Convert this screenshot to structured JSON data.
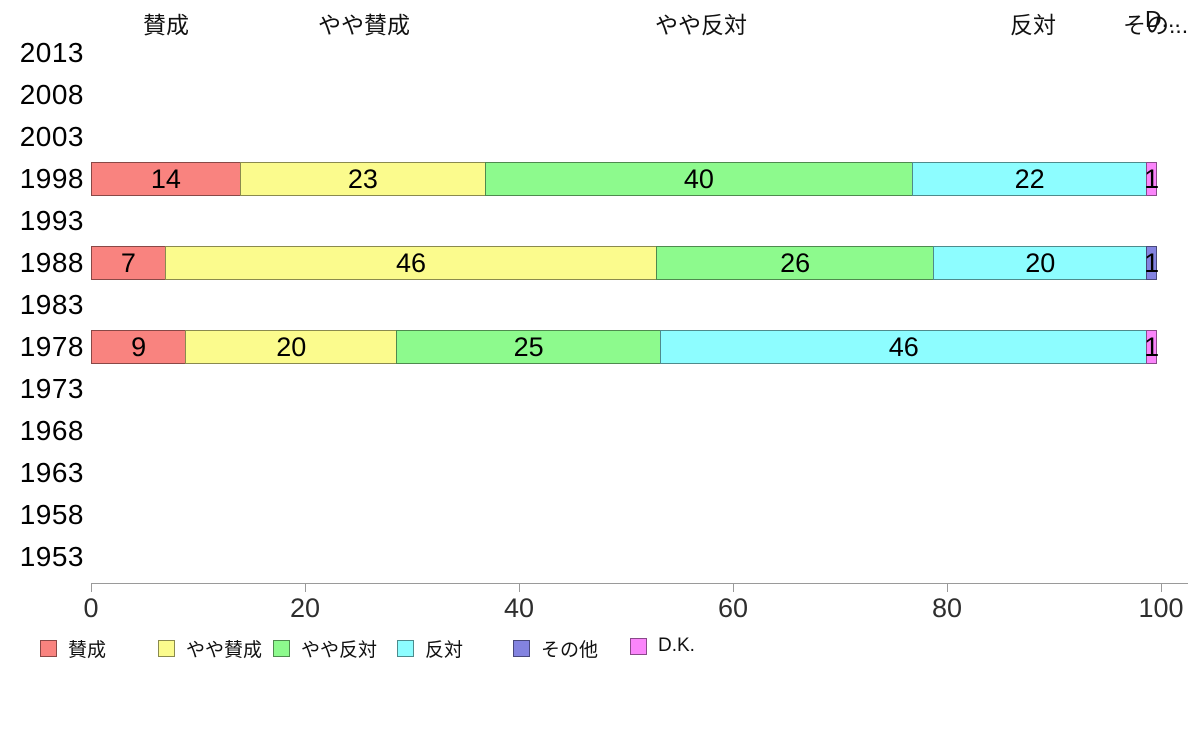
{
  "top_labels": [
    "賛成",
    "やや賛成",
    "やや反対",
    "反対",
    "その...",
    "D..."
  ],
  "legend": {
    "items": [
      {
        "key": "sansei",
        "label": "賛成",
        "color": "#F9837F"
      },
      {
        "key": "yaya-sansei",
        "label": "やや賛成",
        "color": "#FBFB8D"
      },
      {
        "key": "yaya-hantai",
        "label": "やや反対",
        "color": "#8DFA8D"
      },
      {
        "key": "hantai",
        "label": "反対",
        "color": "#8DFDFF"
      },
      {
        "key": "sonota",
        "label": "その他",
        "color": "#8383E0"
      },
      {
        "key": "dk",
        "label": "D.K.",
        "color": "#FA85FA"
      }
    ]
  },
  "chart_data": {
    "type": "bar",
    "orientation": "horizontal",
    "stacked": true,
    "grid": false,
    "legend_position": "bottom",
    "xlim": [
      0,
      100
    ],
    "x_ticks": [
      "0",
      "20",
      "40",
      "60",
      "80",
      "100"
    ],
    "categories": [
      "2013",
      "2008",
      "2003",
      "1998",
      "1993",
      "1988",
      "1983",
      "1978",
      "1973",
      "1968",
      "1963",
      "1958",
      "1953"
    ],
    "series": [
      {
        "key": "sansei",
        "name": "賛成",
        "color": "#F9837F",
        "values": [
          null,
          null,
          null,
          14,
          null,
          7,
          null,
          9,
          null,
          null,
          null,
          null,
          null
        ]
      },
      {
        "key": "yaya-sansei",
        "name": "やや賛成",
        "color": "#FBFB8D",
        "values": [
          null,
          null,
          null,
          23,
          null,
          46,
          null,
          20,
          null,
          null,
          null,
          null,
          null
        ]
      },
      {
        "key": "yaya-hantai",
        "name": "やや反対",
        "color": "#8DFA8D",
        "values": [
          null,
          null,
          null,
          40,
          null,
          26,
          null,
          25,
          null,
          null,
          null,
          null,
          null
        ]
      },
      {
        "key": "hantai",
        "name": "反対",
        "color": "#8DFDFF",
        "values": [
          null,
          null,
          null,
          22,
          null,
          20,
          null,
          46,
          null,
          null,
          null,
          null,
          null
        ]
      },
      {
        "key": "sonota",
        "name": "その他",
        "color": "#8383E0",
        "values": [
          null,
          null,
          null,
          0,
          null,
          1,
          null,
          0,
          null,
          null,
          null,
          null,
          null
        ]
      },
      {
        "key": "dk",
        "name": "D.K.",
        "color": "#FA85FA",
        "values": [
          null,
          null,
          null,
          1,
          null,
          0,
          null,
          1,
          null,
          null,
          null,
          null,
          null
        ]
      }
    ]
  }
}
